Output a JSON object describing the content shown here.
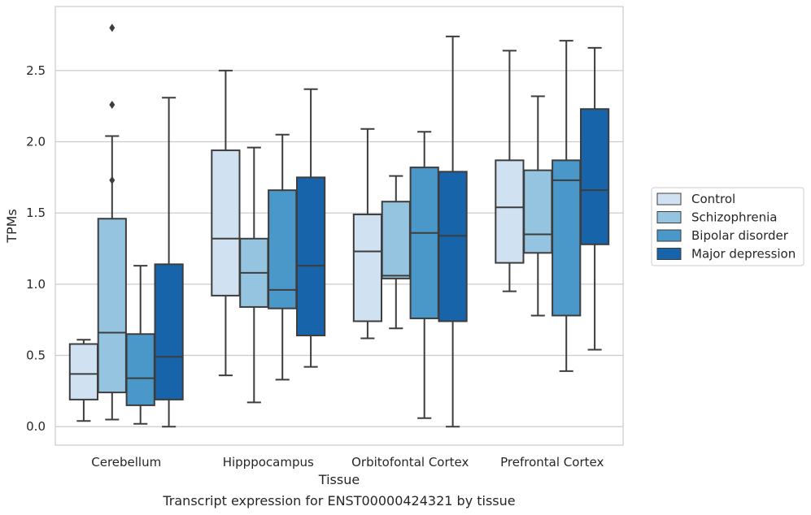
{
  "caption": "Transcript expression for ENST00000424321 by tissue",
  "chart_data": {
    "type": "box",
    "xlabel": "Tissue",
    "ylabel": "TPMs",
    "ylim": [
      -0.13,
      2.95
    ],
    "yticks": [
      0.0,
      0.5,
      1.0,
      1.5,
      2.0,
      2.5
    ],
    "ytick_labels": [
      "0.0",
      "0.5",
      "1.0",
      "1.5",
      "2.0",
      "2.5"
    ],
    "grid": "horizontal",
    "legend_position": "right",
    "categories": [
      "Cerebellum",
      "Hipppocampus",
      "Orbitofontal Cortex",
      "Prefrontal Cortex"
    ],
    "series": [
      {
        "name": "Control",
        "color": "#d0e1f2",
        "boxes": [
          {
            "whislo": 0.04,
            "q1": 0.19,
            "med": 0.37,
            "q3": 0.58,
            "whishi": 0.61,
            "fliers": []
          },
          {
            "whislo": 0.36,
            "q1": 0.92,
            "med": 1.32,
            "q3": 1.94,
            "whishi": 2.5,
            "fliers": []
          },
          {
            "whislo": 0.62,
            "q1": 0.74,
            "med": 1.23,
            "q3": 1.49,
            "whishi": 2.09,
            "fliers": []
          },
          {
            "whislo": 0.95,
            "q1": 1.15,
            "med": 1.54,
            "q3": 1.87,
            "whishi": 2.64,
            "fliers": []
          }
        ]
      },
      {
        "name": "Schizophrenia",
        "color": "#94c4df",
        "boxes": [
          {
            "whislo": 0.05,
            "q1": 0.24,
            "med": 0.66,
            "q3": 1.46,
            "whishi": 2.04,
            "fliers": []
          },
          {
            "whislo": 0.17,
            "q1": 0.84,
            "med": 1.08,
            "q3": 1.32,
            "whishi": 1.96,
            "fliers": []
          },
          {
            "whislo": 0.69,
            "q1": 1.04,
            "med": 1.06,
            "q3": 1.58,
            "whishi": 1.76,
            "fliers": []
          },
          {
            "whislo": 0.78,
            "q1": 1.22,
            "med": 1.35,
            "q3": 1.8,
            "whishi": 2.32,
            "fliers": []
          }
        ]
      },
      {
        "name": "Bipolar disorder",
        "color": "#4a98c9",
        "boxes": [
          {
            "whislo": 0.02,
            "q1": 0.15,
            "med": 0.34,
            "q3": 0.65,
            "whishi": 1.13,
            "fliers": []
          },
          {
            "whislo": 0.33,
            "q1": 0.83,
            "med": 0.96,
            "q3": 1.66,
            "whishi": 2.05,
            "fliers": []
          },
          {
            "whislo": 0.06,
            "q1": 0.76,
            "med": 1.36,
            "q3": 1.82,
            "whishi": 2.07,
            "fliers": []
          },
          {
            "whislo": 0.39,
            "q1": 0.78,
            "med": 1.73,
            "q3": 1.87,
            "whishi": 2.71,
            "fliers": []
          }
        ]
      },
      {
        "name": "Major depression",
        "color": "#1764ab",
        "boxes": [
          {
            "whislo": 0.0,
            "q1": 0.19,
            "med": 0.49,
            "q3": 1.14,
            "whishi": 2.31,
            "fliers": []
          },
          {
            "whislo": 0.42,
            "q1": 0.64,
            "med": 1.13,
            "q3": 1.75,
            "whishi": 2.37,
            "fliers": []
          },
          {
            "whislo": 0.0,
            "q1": 0.74,
            "med": 1.34,
            "q3": 1.79,
            "whishi": 2.74,
            "fliers": []
          },
          {
            "whislo": 0.54,
            "q1": 1.28,
            "med": 1.66,
            "q3": 2.23,
            "whishi": 2.66,
            "fliers": []
          }
        ]
      }
    ],
    "extra_fliers": [
      {
        "category": "Cerebellum",
        "series": "Schizophrenia",
        "values": [
          2.8,
          2.26,
          1.73
        ]
      }
    ]
  }
}
